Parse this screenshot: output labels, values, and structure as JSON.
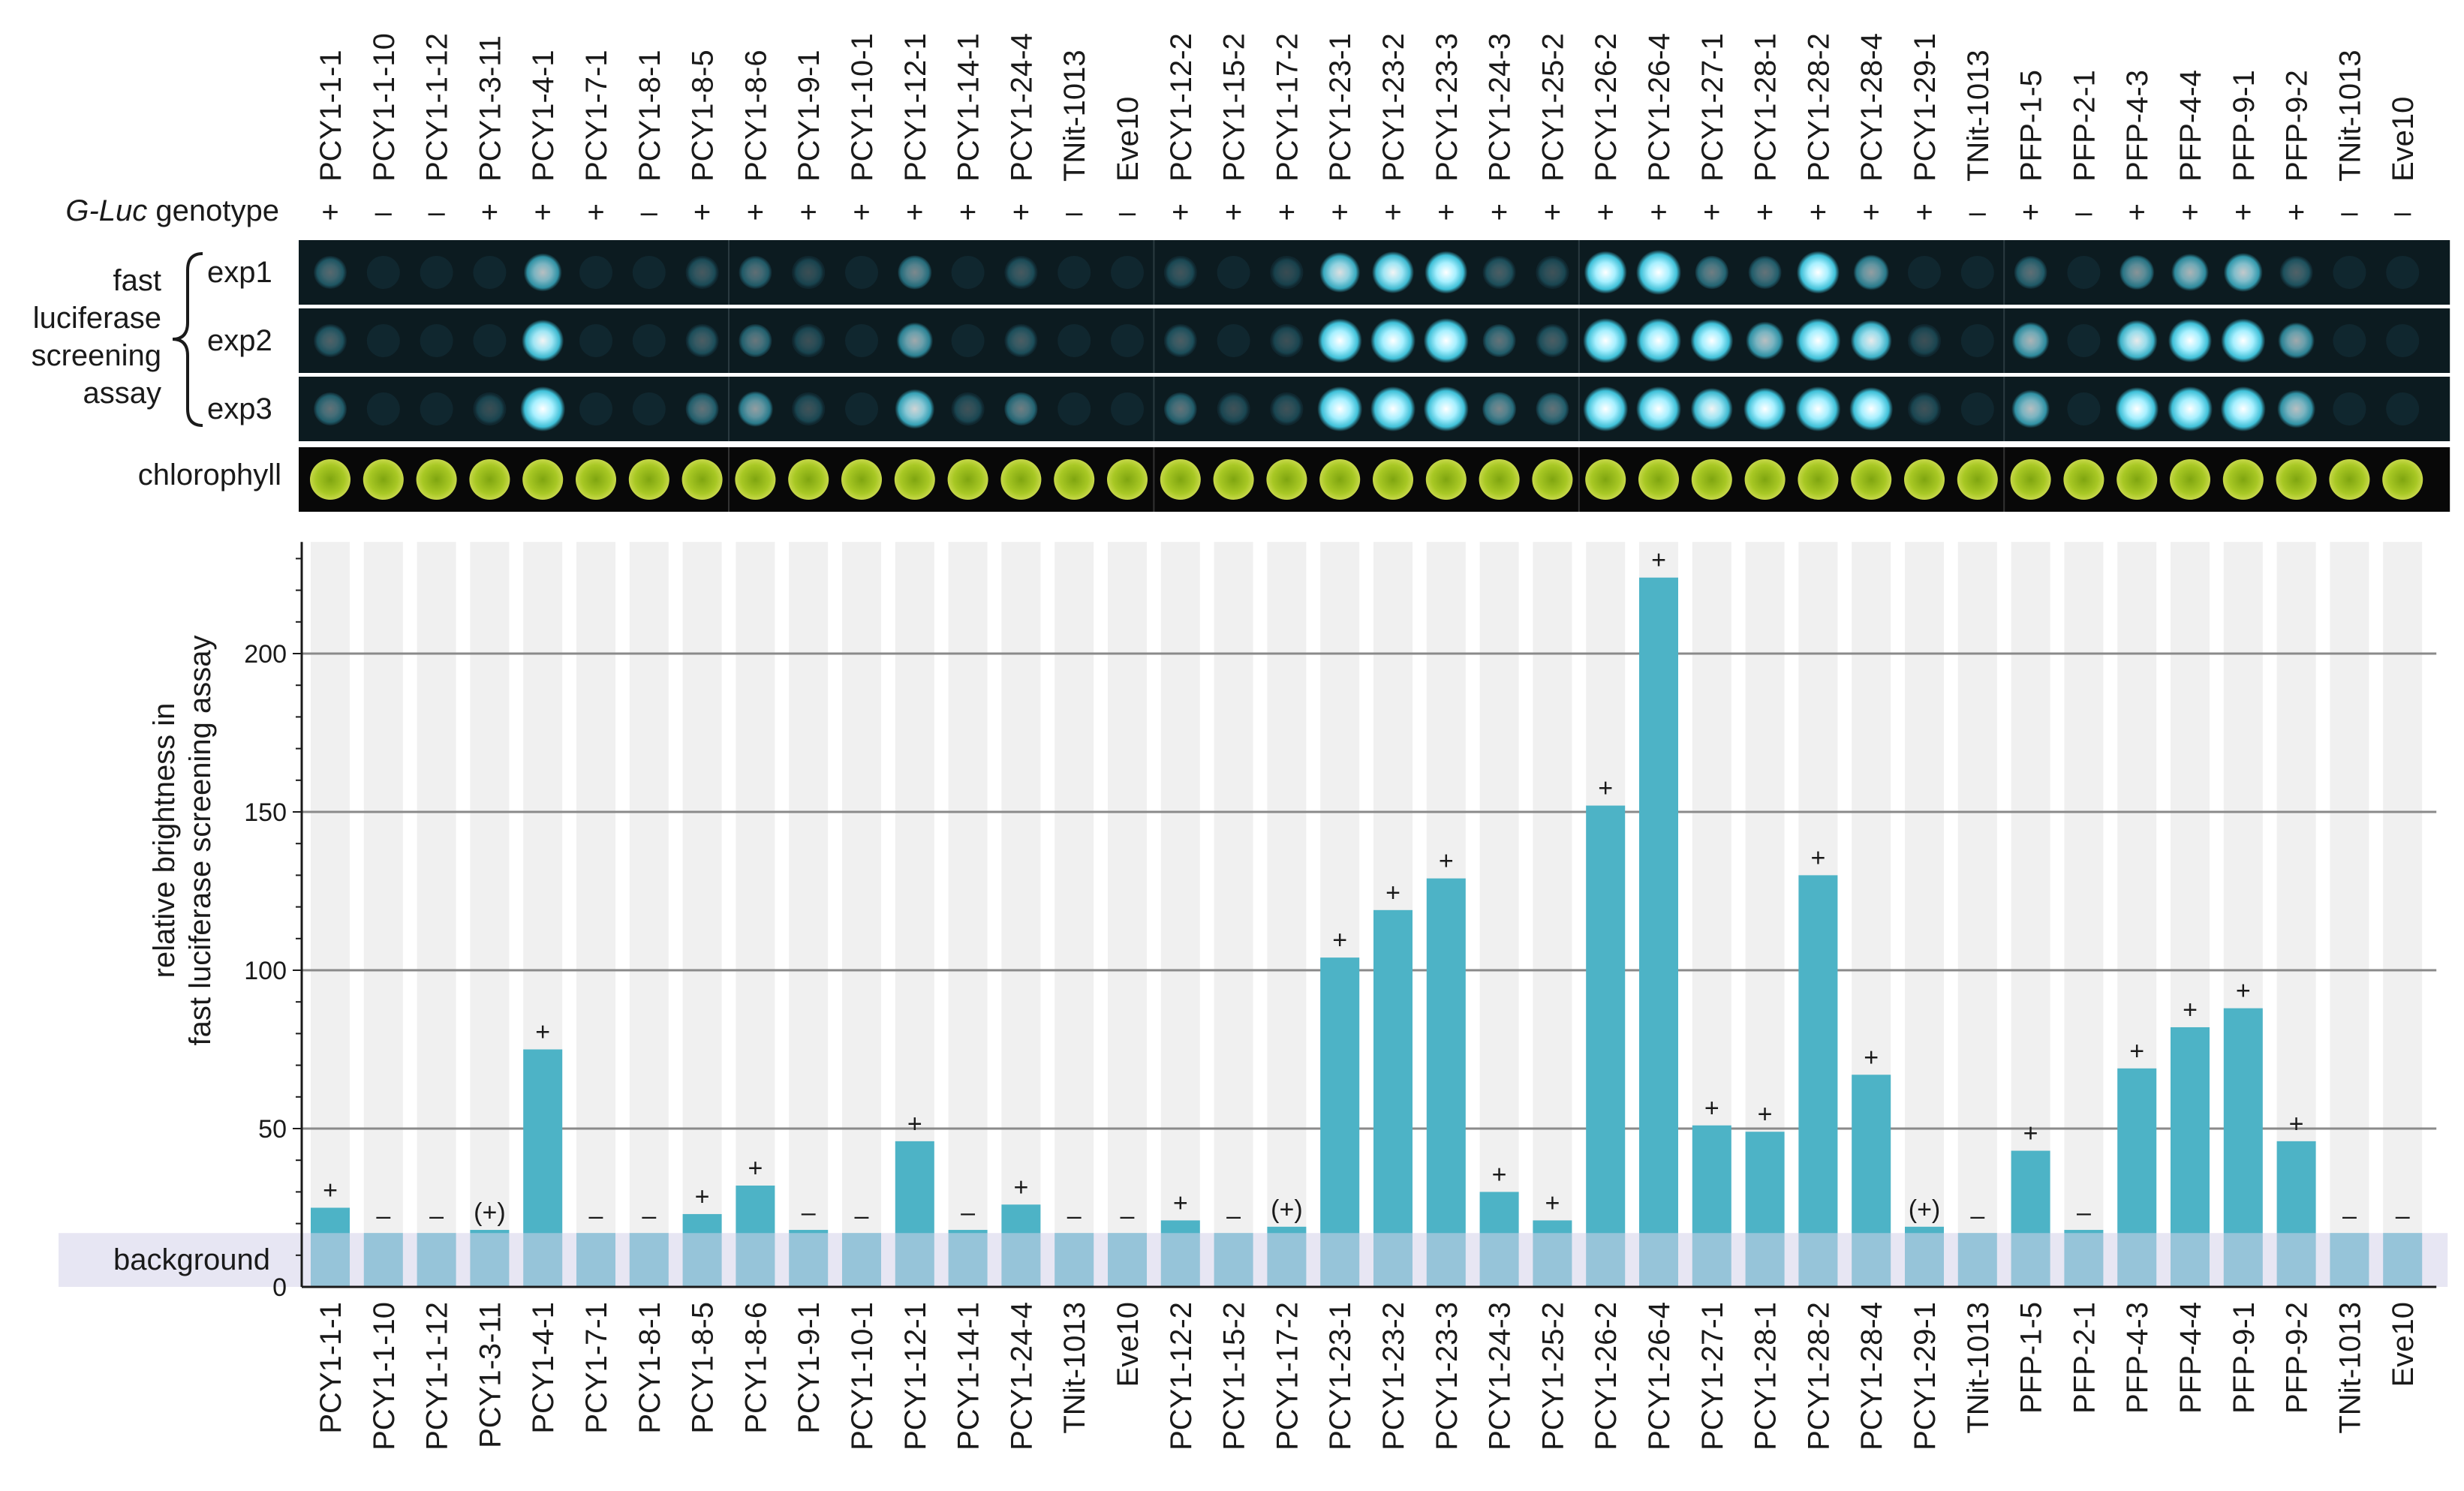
{
  "genotype_label_italic": "G-Luc",
  "genotype_label_rest": " genotype",
  "assay_label_lines": [
    "fast",
    "luciferase",
    "screening",
    "assay"
  ],
  "exp_labels": [
    "exp1",
    "exp2",
    "exp3"
  ],
  "chlorophyll_label": "chlorophyll",
  "background_label": "background",
  "ylabel_lines": [
    "relative brightness in",
    "fast luciferase screening assay"
  ],
  "colors": {
    "bar": "#4db3c6",
    "bar_in_background": "#3b8fb5",
    "background_band": "#d4d2ea",
    "column_stripe": "#f0f0f0",
    "image_strip": "#0c1b20",
    "chlorophyll_strip": "#080808",
    "chlorophyll_disc": "#a7c422",
    "grid": "#8a8a8a"
  },
  "image_group_boundaries_after_index": [
    7,
    15,
    23,
    31
  ],
  "chart_data": {
    "type": "bar",
    "ylim": [
      0,
      240
    ],
    "yticks": [
      0,
      50,
      100,
      150,
      200
    ],
    "background_level": 17,
    "grid": true,
    "categories": [
      "PCY1-1-1",
      "PCY1-1-10",
      "PCY1-1-12",
      "PCY1-3-11",
      "PCY1-4-1",
      "PCY1-7-1",
      "PCY1-8-1",
      "PCY1-8-5",
      "PCY1-8-6",
      "PCY1-9-1",
      "PCY1-10-1",
      "PCY1-12-1",
      "PCY1-14-1",
      "PCY1-24-4",
      "TNit-1013",
      "Eve10",
      "PCY1-12-2",
      "PCY1-15-2",
      "PCY1-17-2",
      "PCY1-23-1",
      "PCY1-23-2",
      "PCY1-23-3",
      "PCY1-24-3",
      "PCY1-25-2",
      "PCY1-26-2",
      "PCY1-26-4",
      "PCY1-27-1",
      "PCY1-28-1",
      "PCY1-28-2",
      "PCY1-28-4",
      "PCY1-29-1",
      "TNit-1013",
      "PFP-1-5",
      "PFP-2-1",
      "PFP-4-3",
      "PFP-4-4",
      "PFP-9-1",
      "PFP-9-2",
      "TNit-1013",
      "Eve10"
    ],
    "values": [
      25,
      17,
      17,
      18,
      75,
      17,
      17,
      23,
      32,
      18,
      17,
      46,
      18,
      26,
      17,
      17,
      21,
      17,
      19,
      104,
      119,
      129,
      30,
      21,
      152,
      224,
      51,
      49,
      130,
      67,
      19,
      17,
      43,
      18,
      69,
      82,
      88,
      46,
      17,
      17
    ],
    "genotype": [
      "+",
      "–",
      "–",
      "+",
      "+",
      "+",
      "–",
      "+",
      "+",
      "+",
      "+",
      "+",
      "+",
      "+",
      "–",
      "–",
      "+",
      "+",
      "+",
      "+",
      "+",
      "+",
      "+",
      "+",
      "+",
      "+",
      "+",
      "+",
      "+",
      "+",
      "+",
      "–",
      "+",
      "–",
      "+",
      "+",
      "+",
      "+",
      "–",
      "–"
    ],
    "value_marks": [
      "+",
      "–",
      "–",
      "(+)",
      "+",
      "–",
      "–",
      "+",
      "+",
      "–",
      "–",
      "+",
      "–",
      "+",
      "–",
      "–",
      "+",
      "–",
      "(+)",
      "+",
      "+",
      "+",
      "+",
      "+",
      "+",
      "+",
      "+",
      "+",
      "+",
      "+",
      "(+)",
      "–",
      "+",
      "–",
      "+",
      "+",
      "+",
      "+",
      "–",
      "–"
    ],
    "exp1": [
      0.15,
      0,
      0,
      0,
      0.55,
      0,
      0,
      0.08,
      0.18,
      0.03,
      0,
      0.3,
      0,
      0.08,
      0,
      0,
      0.06,
      0,
      0.02,
      0.7,
      0.8,
      0.85,
      0.1,
      0.05,
      0.85,
      1.0,
      0.25,
      0.2,
      0.85,
      0.4,
      0,
      0,
      0.18,
      0,
      0.35,
      0.5,
      0.6,
      0.12,
      0,
      0
    ],
    "exp2": [
      0.12,
      0,
      0,
      0,
      0.8,
      0,
      0,
      0.1,
      0.22,
      0.04,
      0,
      0.45,
      0,
      0.1,
      0,
      0,
      0.1,
      0,
      0.04,
      0.95,
      1.0,
      1.0,
      0.2,
      0.1,
      1.0,
      1.0,
      0.85,
      0.55,
      1.0,
      0.75,
      0.04,
      0,
      0.5,
      0,
      0.75,
      0.9,
      0.95,
      0.45,
      0,
      0
    ],
    "exp3": [
      0.2,
      0,
      0,
      0.03,
      1.0,
      0,
      0,
      0.2,
      0.4,
      0.05,
      0,
      0.65,
      0.05,
      0.25,
      0,
      0,
      0.2,
      0.05,
      0.05,
      1.0,
      1.0,
      1.0,
      0.3,
      0.2,
      1.0,
      1.0,
      0.8,
      0.85,
      1.0,
      0.9,
      0.05,
      0,
      0.55,
      0,
      0.9,
      1.0,
      1.0,
      0.55,
      0,
      0
    ]
  }
}
